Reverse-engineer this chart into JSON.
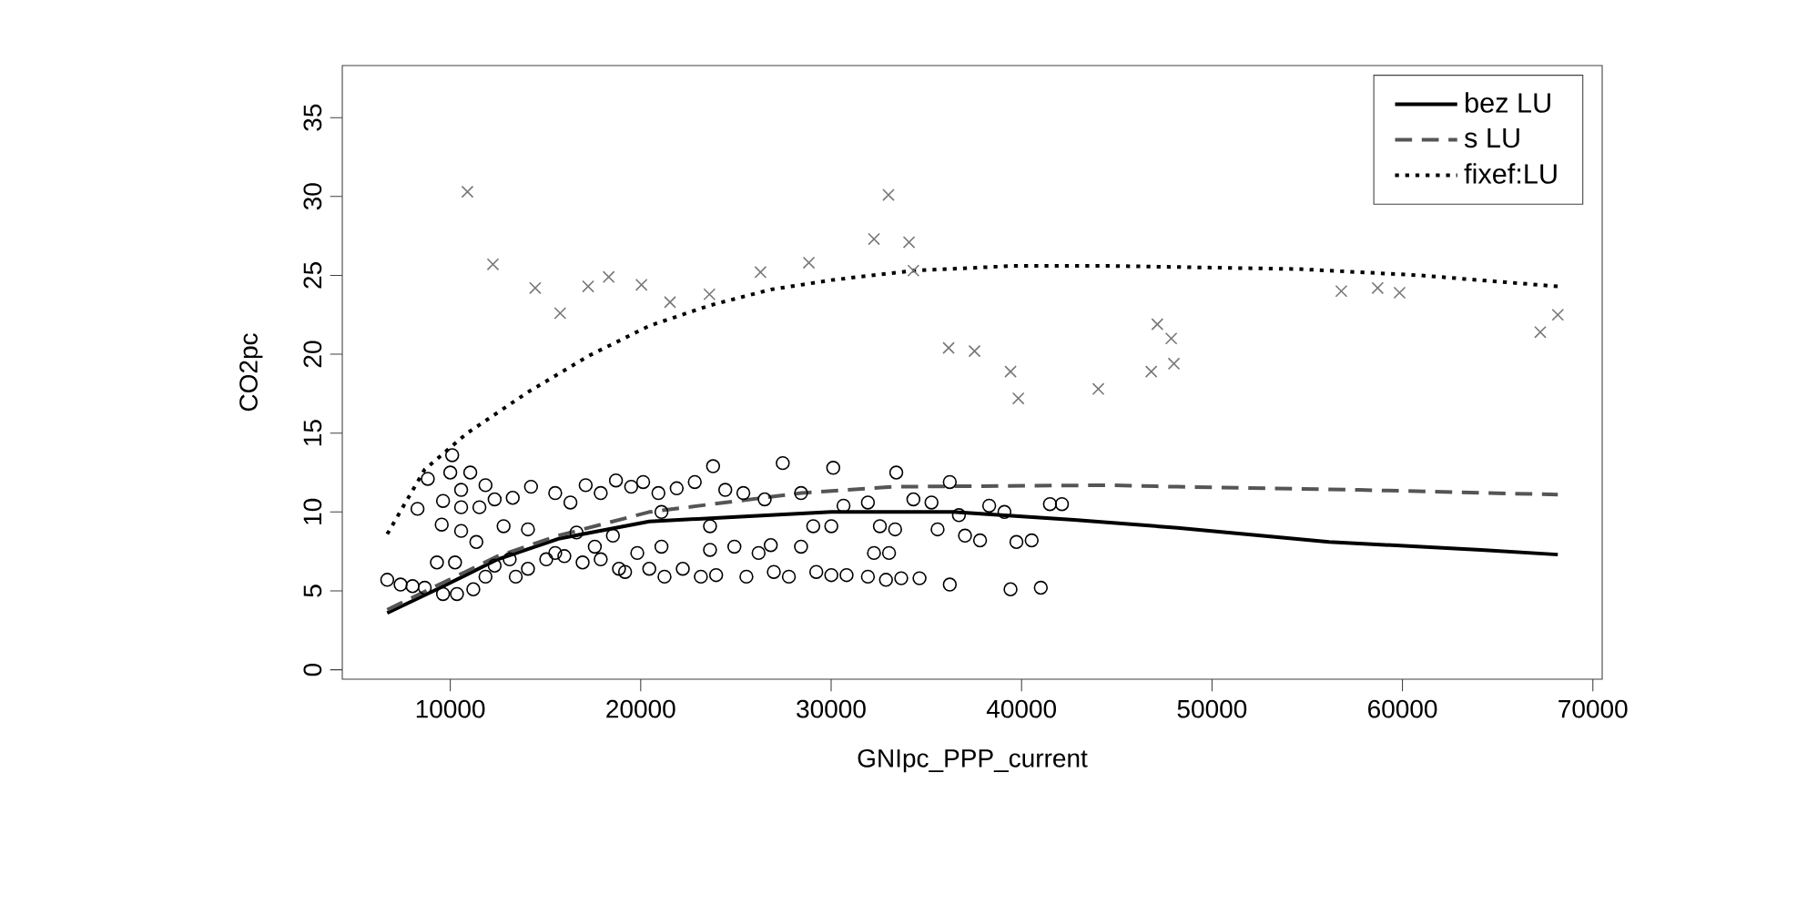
{
  "chart_data": {
    "type": "scatter",
    "xlabel": "GNIpc_PPP_current",
    "ylabel": "CO2pc",
    "xlim": [
      4330,
      70490
    ],
    "ylim": [
      -0.6,
      38.3
    ],
    "xticks": [
      10000,
      20000,
      30000,
      40000,
      50000,
      60000,
      70000
    ],
    "yticks": [
      0,
      5,
      10,
      15,
      20,
      25,
      30,
      35
    ],
    "legend": "top right",
    "grid": false,
    "series": [
      {
        "marker": "circle",
        "color": "#000000",
        "x": [
          6690,
          7390,
          8020,
          8660,
          9620,
          10350,
          11210,
          9300,
          10250,
          8280,
          8820,
          10100,
          10000,
          11050,
          11850,
          9620,
          10570,
          9550,
          10570,
          11530,
          10570,
          11370,
          12330,
          13280,
          14240,
          15510,
          16310,
          17110,
          17900,
          18700,
          19500,
          20130,
          20930,
          21890,
          22840,
          23800,
          24440,
          25390,
          26510,
          27460,
          28420,
          30110,
          30650,
          31930,
          33420,
          34320,
          35270,
          36230,
          36710,
          38300,
          39100,
          41490,
          42120,
          12330,
          13120,
          14080,
          15040,
          15990,
          16950,
          17900,
          18860,
          19820,
          20450,
          21250,
          22210,
          23160,
          23960,
          24920,
          25550,
          26830,
          26990,
          27780,
          28420,
          29220,
          30010,
          30810,
          31930,
          32880,
          33680,
          34640,
          36230,
          39420,
          41010,
          39730,
          40530,
          37820,
          37030,
          35590,
          33360,
          32560,
          30010,
          29060,
          23640,
          21090,
          18540,
          16630,
          14080,
          12800,
          15510,
          17590,
          21090,
          23640,
          26190,
          32250,
          33040,
          19180,
          13440,
          11850
        ],
        "values": [
          5.7,
          5.4,
          5.3,
          5.2,
          4.8,
          4.8,
          5.1,
          6.8,
          6.8,
          10.2,
          12.1,
          13.6,
          12.5,
          12.5,
          11.7,
          10.7,
          11.4,
          9.2,
          10.3,
          10.3,
          8.8,
          8.1,
          10.8,
          10.9,
          11.6,
          11.2,
          10.6,
          11.7,
          11.2,
          12.0,
          11.6,
          11.9,
          11.2,
          11.5,
          11.9,
          12.9,
          11.4,
          11.2,
          10.8,
          13.1,
          11.2,
          12.8,
          10.4,
          10.6,
          12.5,
          10.8,
          10.6,
          11.9,
          9.8,
          10.4,
          10.0,
          10.5,
          10.5,
          6.6,
          7.0,
          6.4,
          7.0,
          7.2,
          6.8,
          7.0,
          6.4,
          7.4,
          6.4,
          5.9,
          6.4,
          5.9,
          6.0,
          7.8,
          5.9,
          7.9,
          6.2,
          5.9,
          7.8,
          6.2,
          6.0,
          6.0,
          5.9,
          5.7,
          5.8,
          5.8,
          5.4,
          5.1,
          5.2,
          8.1,
          8.2,
          8.2,
          8.5,
          8.9,
          8.9,
          9.1,
          9.1,
          9.1,
          9.1,
          10.0,
          8.5,
          8.7,
          8.9,
          9.1,
          7.4,
          7.8,
          7.8,
          7.6,
          7.4,
          7.4,
          7.4,
          6.2,
          5.9,
          5.9
        ]
      },
      {
        "marker": "cross",
        "color": "#777777",
        "x": [
          10900,
          12240,
          14460,
          15770,
          17240,
          18320,
          20040,
          21540,
          23610,
          26290,
          28830,
          32250,
          33010,
          34090,
          34320,
          36170,
          37530,
          39420,
          39830,
          44030,
          46810,
          47130,
          47860,
          48000,
          56790,
          58700,
          59850,
          67240,
          68160
        ],
        "values": [
          30.3,
          25.7,
          24.2,
          22.6,
          24.3,
          24.9,
          24.4,
          23.3,
          23.8,
          25.2,
          25.8,
          27.3,
          30.1,
          27.1,
          25.3,
          20.4,
          20.2,
          18.9,
          17.2,
          17.8,
          18.9,
          21.9,
          21.0,
          19.4,
          24.0,
          24.2,
          23.9,
          21.4,
          22.5
        ]
      },
      {
        "type": "line",
        "name": "bez LU",
        "line_style": "solid",
        "marker": "none",
        "color": "#000000",
        "x": [
          6690,
          9300,
          12490,
          15670,
          20450,
          25230,
          30010,
          36390,
          40210,
          42760,
          48180,
          56150,
          64120,
          68160
        ],
        "values": [
          3.6,
          5.1,
          7.0,
          8.3,
          9.4,
          9.7,
          10.0,
          10.0,
          9.7,
          9.5,
          9.0,
          8.1,
          7.6,
          7.3
        ]
      },
      {
        "type": "line",
        "name": "s LU",
        "line_style": "dashed",
        "marker": "none",
        "color": "#555555",
        "x": [
          6690,
          12490,
          15670,
          20450,
          28420,
          33200,
          44670,
          48180,
          57740,
          68160
        ],
        "values": [
          3.8,
          7.2,
          8.5,
          10.0,
          11.2,
          11.6,
          11.7,
          11.6,
          11.4,
          11.1
        ]
      },
      {
        "type": "line",
        "name": "fixef:LU",
        "line_style": "dotted",
        "marker": "none",
        "color": "#000000",
        "x": [
          6690,
          8660,
          10890,
          14080,
          17270,
          20450,
          23640,
          26830,
          30010,
          34320,
          39580,
          44670,
          54550,
          60930,
          68160
        ],
        "values": [
          8.6,
          12.7,
          15.0,
          17.6,
          19.9,
          21.8,
          23.1,
          24.1,
          24.7,
          25.3,
          25.6,
          25.6,
          25.4,
          25.0,
          24.3
        ]
      }
    ]
  }
}
